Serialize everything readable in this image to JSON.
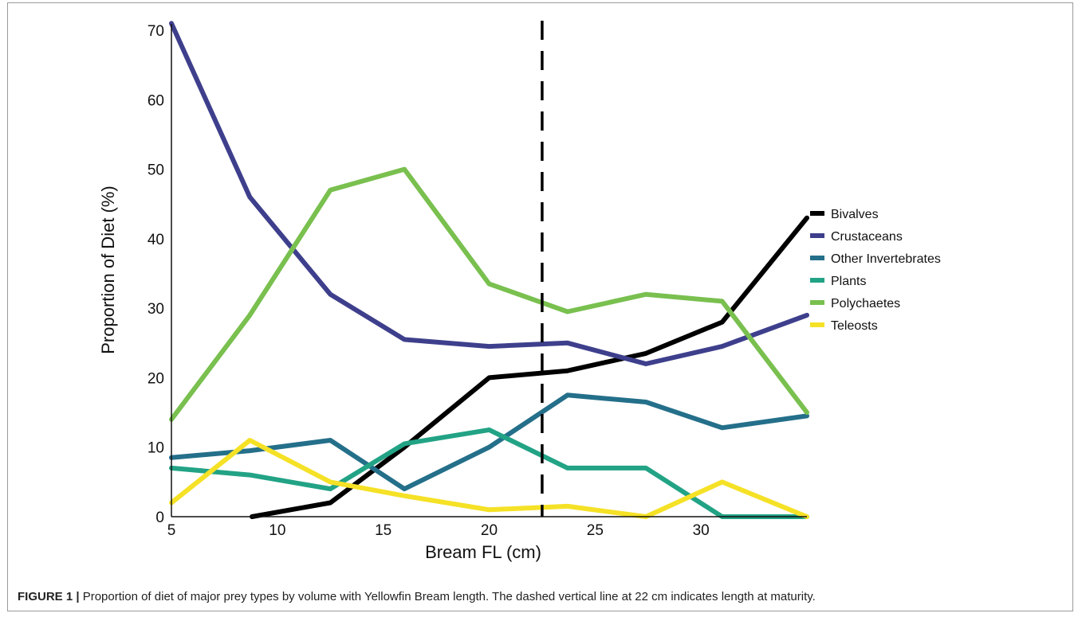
{
  "figure": {
    "label": "FIGURE 1 |",
    "caption": "Proportion of diet of major prey types by volume with Yellowfin Bream length. The dashed vertical line at 22 cm indicates length at maturity."
  },
  "chart_data": {
    "type": "line",
    "xlabel": "Bream FL (cm)",
    "ylabel": "Proportion of Diet (%)",
    "xlim": [
      5,
      35
    ],
    "ylim": [
      0,
      70
    ],
    "xticks": [
      5,
      10,
      15,
      20,
      25,
      30
    ],
    "yticks": [
      0,
      10,
      20,
      30,
      40,
      50,
      60,
      70
    ],
    "grid": false,
    "legend_position": "right",
    "reference_line": {
      "x": 22.5,
      "style": "dashed",
      "color": "#000000"
    },
    "series": [
      {
        "name": "Bivalves",
        "color": "#000000",
        "points": [
          [
            8.8,
            0
          ],
          [
            12.5,
            2
          ],
          [
            16,
            10
          ],
          [
            20,
            20
          ],
          [
            23.7,
            21
          ],
          [
            27.4,
            23.5
          ],
          [
            31,
            28
          ],
          [
            35,
            43
          ]
        ]
      },
      {
        "name": "Crustaceans",
        "color": "#3e3f8c",
        "points": [
          [
            5,
            71
          ],
          [
            8.7,
            46
          ],
          [
            12.5,
            32
          ],
          [
            16,
            25.5
          ],
          [
            20,
            24.5
          ],
          [
            23.7,
            25
          ],
          [
            27.4,
            22
          ],
          [
            31,
            24.5
          ],
          [
            35,
            29
          ]
        ]
      },
      {
        "name": "Other Invertebrates",
        "color": "#246f8a",
        "points": [
          [
            5,
            8.5
          ],
          [
            8.7,
            9.5
          ],
          [
            12.5,
            11
          ],
          [
            16,
            4
          ],
          [
            20,
            10
          ],
          [
            23.7,
            17.5
          ],
          [
            27.4,
            16.5
          ],
          [
            31,
            12.8
          ],
          [
            35,
            14.5
          ]
        ]
      },
      {
        "name": "Plants",
        "color": "#22a385",
        "points": [
          [
            5,
            7
          ],
          [
            8.7,
            6
          ],
          [
            12.5,
            4
          ],
          [
            16,
            10.5
          ],
          [
            20,
            12.5
          ],
          [
            23.7,
            7
          ],
          [
            27.4,
            7
          ],
          [
            31,
            0
          ],
          [
            35,
            0
          ]
        ]
      },
      {
        "name": "Polychaetes",
        "color": "#79c04f",
        "points": [
          [
            5,
            14
          ],
          [
            8.7,
            29
          ],
          [
            12.5,
            47
          ],
          [
            16,
            50
          ],
          [
            20,
            33.5
          ],
          [
            23.7,
            29.5
          ],
          [
            27.4,
            32
          ],
          [
            31,
            31
          ],
          [
            35,
            15
          ]
        ]
      },
      {
        "name": "Teleosts",
        "color": "#f5e126",
        "points": [
          [
            5,
            2
          ],
          [
            8.7,
            11
          ],
          [
            12.5,
            5
          ],
          [
            16,
            3
          ],
          [
            20,
            1
          ],
          [
            23.7,
            1.5
          ],
          [
            27.4,
            0
          ],
          [
            31,
            5
          ],
          [
            35,
            0
          ]
        ]
      }
    ]
  }
}
